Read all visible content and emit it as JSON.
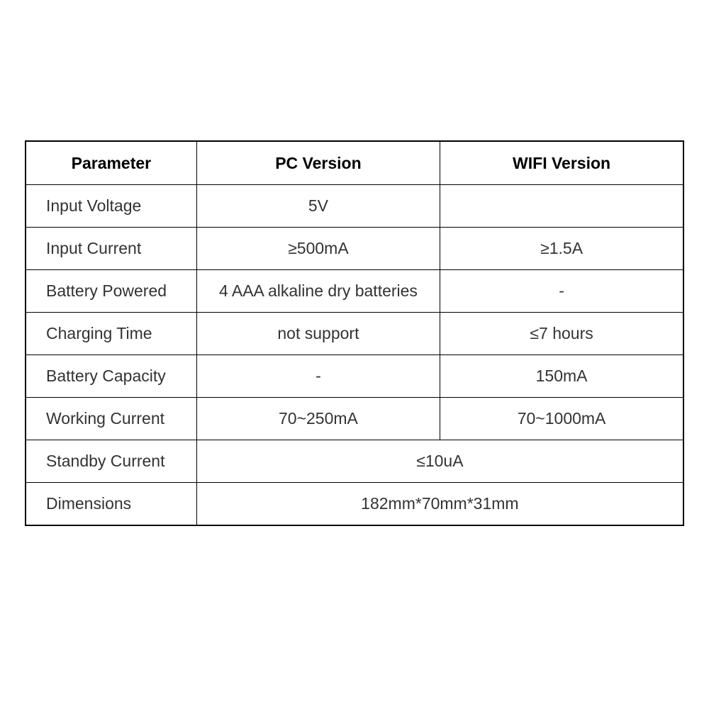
{
  "table": {
    "type": "table",
    "border_color": "#000000",
    "background_color": "#ffffff",
    "text_color": "#333333",
    "header_text_color": "#000000",
    "font_family": "Arial",
    "font_size": 23,
    "header_font_weight": "bold",
    "columns": [
      {
        "key": "parameter",
        "label": "Parameter",
        "width_pct": 26,
        "align": "left"
      },
      {
        "key": "pc",
        "label": "PC Version",
        "width_pct": 37,
        "align": "center"
      },
      {
        "key": "wifi",
        "label": "WIFI Version",
        "width_pct": 37,
        "align": "center"
      }
    ],
    "rows": [
      {
        "parameter": "Input Voltage",
        "pc": "5V",
        "wifi": "",
        "merge_pc_wifi": false,
        "pc_align": "center"
      },
      {
        "parameter": "Input Current",
        "pc": "≥500mA",
        "wifi": "≥1.5A",
        "merge_pc_wifi": false
      },
      {
        "parameter": "Battery Powered",
        "pc": "4 AAA alkaline dry batteries",
        "wifi": "-",
        "merge_pc_wifi": false
      },
      {
        "parameter": "Charging Time",
        "pc": "not support",
        "wifi": "≤7 hours",
        "merge_pc_wifi": false
      },
      {
        "parameter": "Battery Capacity",
        "pc": "-",
        "wifi": "150mA",
        "merge_pc_wifi": false
      },
      {
        "parameter": "Working Current",
        "pc": "70~250mA",
        "wifi": "70~1000mA",
        "merge_pc_wifi": false
      },
      {
        "parameter": "Standby Current",
        "merged": "≤10uA",
        "merge_pc_wifi": true
      },
      {
        "parameter": "Dimensions",
        "merged": "182mm*70mm*31mm",
        "merge_pc_wifi": true
      }
    ]
  }
}
